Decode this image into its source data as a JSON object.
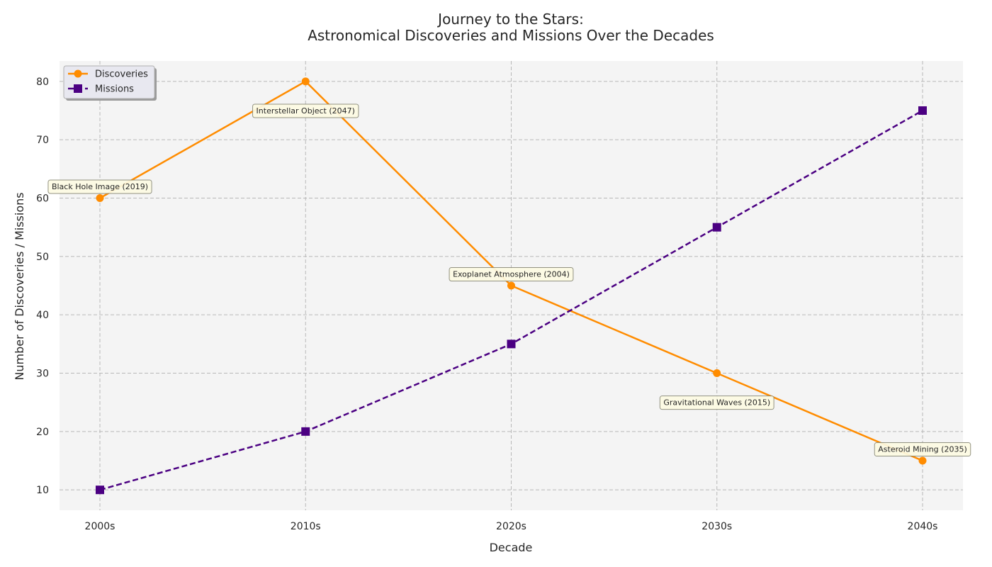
{
  "chart_data": {
    "type": "line",
    "title_lines": [
      "Journey to the Stars:",
      "Astronomical Discoveries and Missions Over the Decades"
    ],
    "xlabel": "Decade",
    "ylabel": "Number of Discoveries / Missions",
    "categories": [
      "2000s",
      "2010s",
      "2020s",
      "2030s",
      "2040s"
    ],
    "ylim": [
      6.5,
      83.5
    ],
    "yticks": [
      10,
      20,
      30,
      40,
      50,
      60,
      70,
      80
    ],
    "grid": true,
    "legend_position": "top-left",
    "series": [
      {
        "name": "Discoveries",
        "values": [
          60,
          80,
          45,
          30,
          15
        ],
        "color": "#ff8c00",
        "marker": "circle",
        "line_style": "solid"
      },
      {
        "name": "Missions",
        "values": [
          10,
          20,
          35,
          55,
          75
        ],
        "color": "#4b0082",
        "marker": "square",
        "line_style": "dashed"
      }
    ],
    "annotations": [
      {
        "text": "Black Hole Image (2019)",
        "category": "2000s",
        "y": 62
      },
      {
        "text": "Interstellar Object (2047)",
        "category": "2010s",
        "y": 75
      },
      {
        "text": "Exoplanet Atmosphere (2004)",
        "category": "2020s",
        "y": 47
      },
      {
        "text": "Gravitational Waves (2015)",
        "category": "2030s",
        "y": 25
      },
      {
        "text": "Asteroid Mining (2035)",
        "category": "2040s",
        "y": 17
      }
    ],
    "colors": {
      "plot_background": "#f4f4f4",
      "grid": "#b8b8b8",
      "annotation_fill": "#fdfbe3",
      "annotation_border": "#8a8a78",
      "legend_fill": "#e8e8f0"
    }
  }
}
